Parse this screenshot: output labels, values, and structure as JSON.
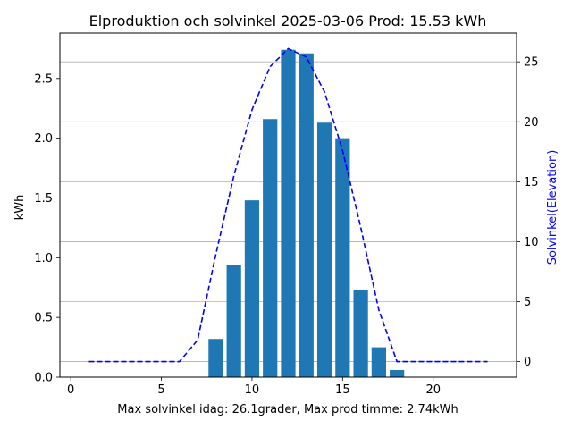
{
  "chart_data": {
    "type": "bar",
    "title": "Elproduktion och solvinkel 2025-03-06 Prod: 15.53 kWh",
    "xlabel": "Max solvinkel idag: 26.1grader, Max prod timme: 2.74kWh",
    "ylabel": "kWh",
    "y2label": "Solvinkel(Elevation)",
    "xlim": [
      -0.6,
      24.6
    ],
    "ylim": [
      0,
      2.88
    ],
    "y2lim": [
      -1.3,
      27.4
    ],
    "xticks": [
      0,
      5,
      10,
      15,
      20
    ],
    "yticks": [
      0.0,
      0.5,
      1.0,
      1.5,
      2.0,
      2.5
    ],
    "y2ticks": [
      0,
      5,
      10,
      15,
      20,
      25
    ],
    "grid": "horizontal on secondary axis",
    "bars": {
      "name": "kWh",
      "color": "#1f77b4",
      "x": [
        8,
        9,
        10,
        11,
        12,
        13,
        14,
        15,
        16,
        17,
        18
      ],
      "values": [
        0.32,
        0.94,
        1.48,
        2.16,
        2.74,
        2.71,
        2.13,
        2.0,
        0.73,
        0.25,
        0.06
      ]
    },
    "line": {
      "name": "Solvinkel(Elevation)",
      "color": "#0000ff",
      "style": "dashed",
      "x": [
        1,
        2,
        3,
        4,
        5,
        6,
        7,
        8,
        9,
        10,
        11,
        12,
        13,
        14,
        15,
        16,
        17,
        18,
        19,
        20,
        21,
        22,
        23
      ],
      "values": [
        0,
        0,
        0,
        0,
        0,
        0,
        1.8,
        8.9,
        15.5,
        21.0,
        24.6,
        26.1,
        25.4,
        22.5,
        17.6,
        11.2,
        4.3,
        0,
        0,
        0,
        0,
        0,
        0
      ]
    }
  }
}
